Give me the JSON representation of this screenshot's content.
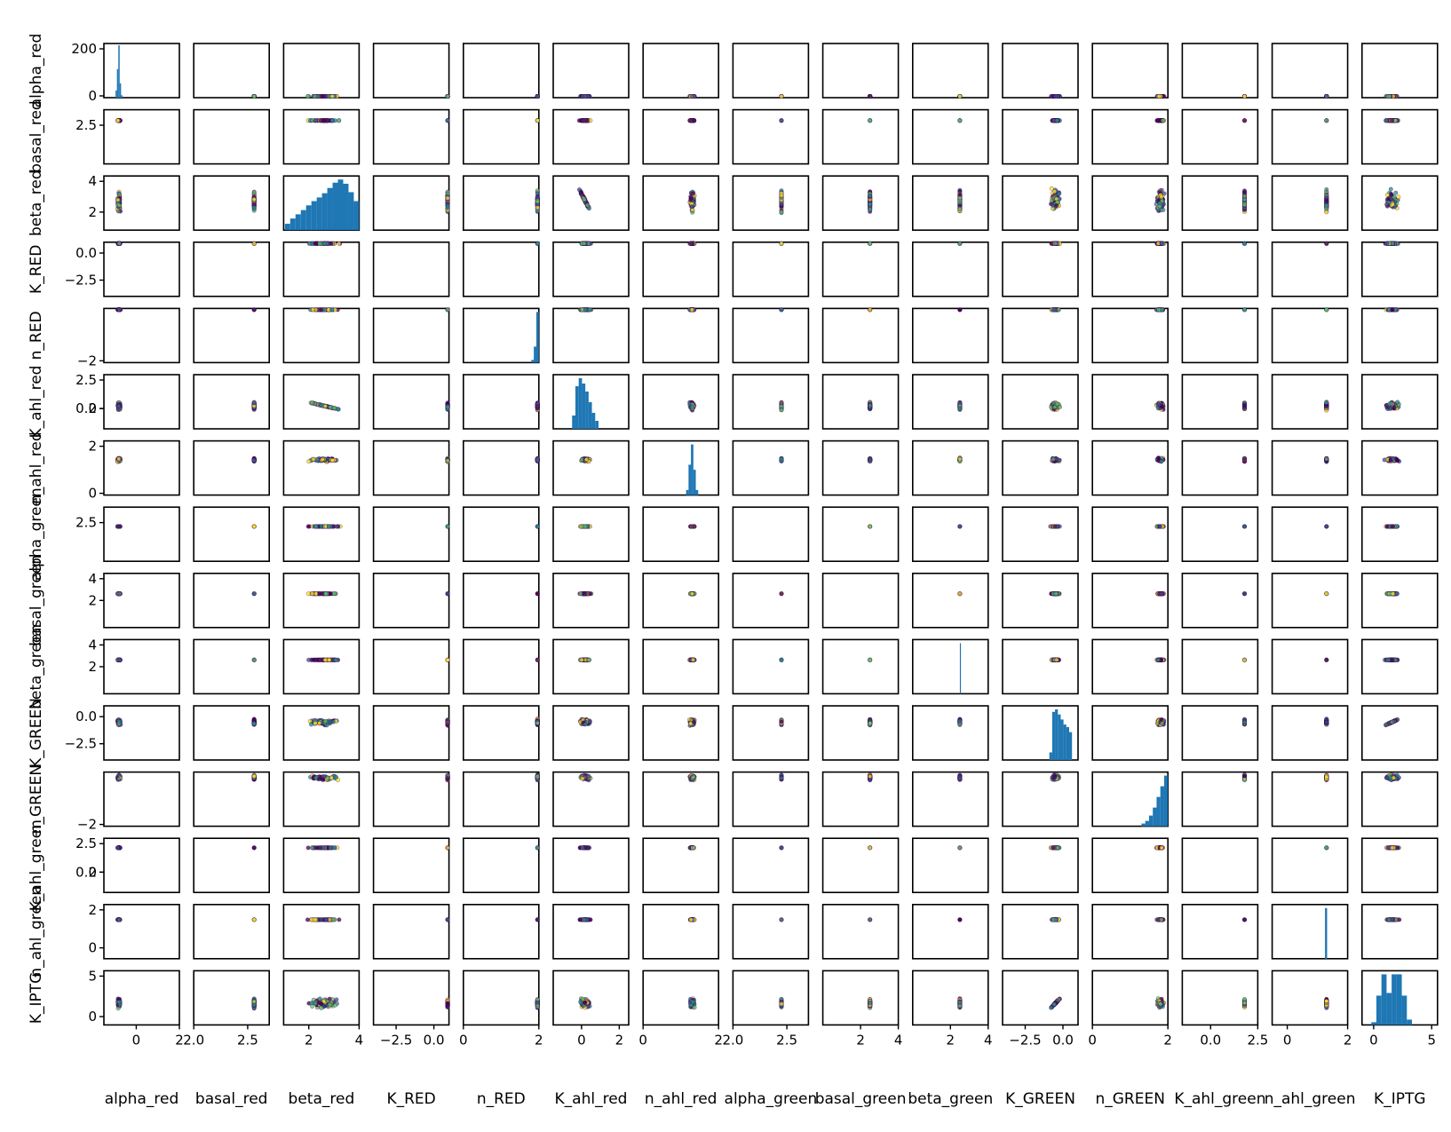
{
  "chart_data": {
    "type": "scatter",
    "kind": "pair-plot (scatter matrix, histograms on diagonal)",
    "variables": [
      "alpha_red",
      "basal_red",
      "beta_red",
      "K_RED",
      "n_RED",
      "K_ahl_red",
      "n_ahl_red",
      "alpha_green",
      "basal_green",
      "beta_green",
      "K_GREEN",
      "n_GREEN",
      "K_ahl_green",
      "n_ahl_green",
      "K_IPTG"
    ],
    "ranges": [
      [
        -1.5,
        2
      ],
      [
        2,
        2.7
      ],
      [
        1,
        4
      ],
      [
        -4,
        1
      ],
      [
        0,
        2
      ],
      [
        -1.5,
        2.5
      ],
      [
        0,
        2
      ],
      [
        2,
        2.7
      ],
      [
        0,
        4
      ],
      [
        0,
        4
      ],
      [
        -4,
        1
      ],
      [
        0,
        2
      ],
      [
        -1.5,
        2.5
      ],
      [
        -0.5,
        2
      ],
      [
        -1,
        5.5
      ]
    ],
    "x_ticks": [
      [
        "0",
        "2"
      ],
      [
        "2.0",
        "2.5"
      ],
      [
        "2",
        "4"
      ],
      [
        "−2.5",
        "0.0"
      ],
      [
        "0",
        "2"
      ],
      [
        "0",
        "2"
      ],
      [
        "0",
        "2"
      ],
      [
        "2.0",
        "2.5"
      ],
      [
        "2",
        "4"
      ],
      [
        "2",
        "4"
      ],
      [
        "−2.5",
        "0.0"
      ],
      [
        "0",
        "2"
      ],
      [
        "0.0",
        "2.5"
      ],
      [
        "0",
        "2"
      ],
      [
        "0",
        "5"
      ]
    ],
    "x_tick_values": [
      [
        0,
        2
      ],
      [
        2.0,
        2.5
      ],
      [
        2,
        4
      ],
      [
        -2.5,
        0.0
      ],
      [
        0,
        2
      ],
      [
        0,
        2
      ],
      [
        0,
        2
      ],
      [
        2.0,
        2.5
      ],
      [
        2,
        4
      ],
      [
        2,
        4
      ],
      [
        -2.5,
        0.0
      ],
      [
        0,
        2
      ],
      [
        0.0,
        2.5
      ],
      [
        0,
        2
      ],
      [
        0,
        5
      ]
    ],
    "y_ticks": [
      [
        "0",
        "200"
      ],
      [
        "2.5"
      ],
      [
        "2",
        "4"
      ],
      [
        "−2.5",
        "0.0"
      ],
      [
        "−2"
      ],
      [
        "2",
        "0.0",
        "2.5"
      ],
      [
        "0",
        "2"
      ],
      [
        "2.5"
      ],
      [
        "2",
        "4"
      ],
      [
        "2",
        "4"
      ],
      [
        "−2.5",
        "0.0"
      ],
      [
        "−2"
      ],
      [
        "2",
        "0.0",
        "2.5"
      ],
      [
        "0",
        "2"
      ],
      [
        "0",
        "5"
      ]
    ],
    "y_tick_values": [
      [
        0,
        200
      ],
      [
        2.5
      ],
      [
        2,
        4
      ],
      [
        -2.5,
        0.0
      ],
      [
        -2
      ],
      [
        0,
        0.0,
        2.5
      ],
      [
        0,
        2
      ],
      [
        2.5
      ],
      [
        2,
        4
      ],
      [
        2,
        4
      ],
      [
        -2.5,
        0.0
      ],
      [
        -2
      ],
      [
        0,
        0.0,
        2.5
      ],
      [
        0,
        2
      ],
      [
        0,
        5
      ]
    ],
    "y_range_row0": [
      0,
      220
    ],
    "centers": [
      -0.8,
      2.56,
      2.6,
      1,
      2,
      0.2,
      1.3,
      2.45,
      2.5,
      2.5,
      -0.5,
      1.8,
      1.8,
      1.3,
      1.6
    ],
    "spreads": [
      0.08,
      0.0,
      0.75,
      0,
      0,
      0.35,
      0.08,
      0,
      0,
      0,
      0.35,
      0.12,
      0,
      0,
      0.7
    ],
    "cloud_colors": [
      "#fde725",
      "#5ec962",
      "#21918c",
      "#3b528b",
      "#440154"
    ],
    "histograms": {
      "alpha_red": [
        30,
        120,
        220,
        60,
        10
      ],
      "beta_red": [
        0.12,
        0.22,
        0.3,
        0.38,
        0.47,
        0.55,
        0.62,
        0.7,
        0.8,
        0.9,
        0.96,
        0.88,
        0.72,
        0.55
      ],
      "n_RED": [
        0.05,
        0.3,
        0.95
      ],
      "K_ahl_red": [
        0.25,
        0.8,
        0.95,
        0.85,
        0.7,
        0.5,
        0.3,
        0.15
      ],
      "n_ahl_red": [
        0.1,
        0.6,
        1.0,
        0.5,
        0.1
      ],
      "beta_green": [
        0.45
      ],
      "K_GREEN": [
        0.15,
        0.95,
        1.0,
        0.9,
        0.8,
        0.7,
        0.65,
        0.55
      ],
      "n_GREEN": [
        0.05,
        0.1,
        0.2,
        0.35,
        0.55,
        0.75,
        0.95
      ],
      "n_ahl_green": [
        1.0
      ],
      "K_IPTG": [
        0.05,
        0.55,
        0.95,
        0.6,
        0.95,
        0.95,
        0.55,
        0.1
      ]
    },
    "hist_color": "#1f77b4",
    "axis_color": "#000000"
  }
}
